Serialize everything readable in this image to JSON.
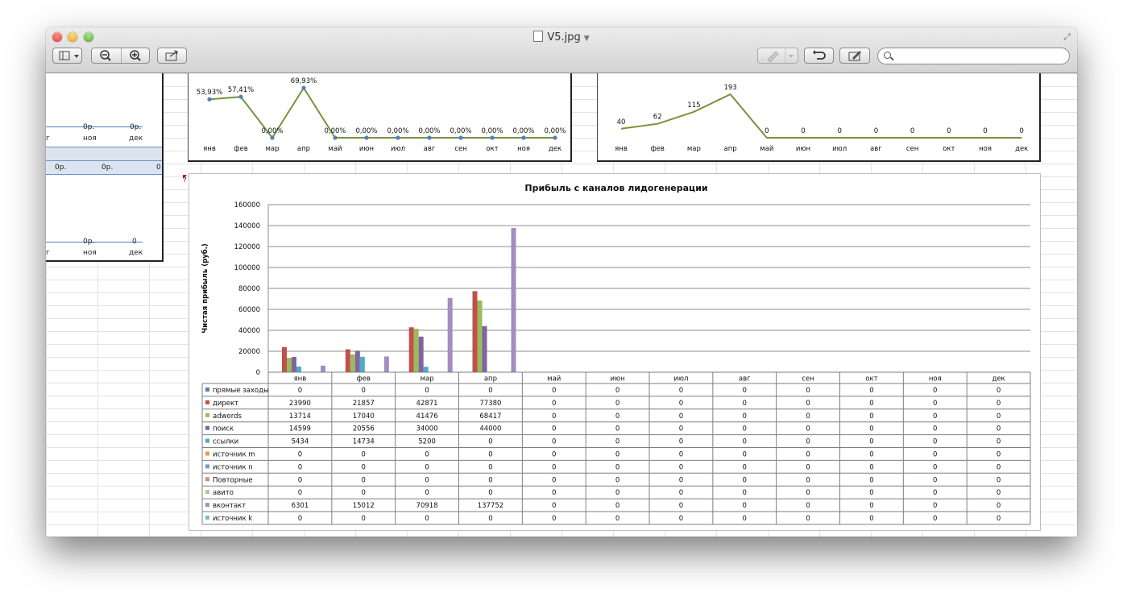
{
  "window": {
    "title": "V5.jpg"
  },
  "toolbar": {
    "sidebar_icon": "sidebar-icon",
    "zoom_out_icon": "zoom-out-icon",
    "zoom_in_icon": "zoom-in-icon",
    "share_icon": "share-icon",
    "annotate_icon": "highlighter-icon",
    "rotate_icon": "rotate-icon",
    "edit_icon": "edit-icon",
    "search_placeholder": ""
  },
  "left_panel": {
    "top_row": {
      "values": [
        "0р.",
        "0р."
      ],
      "months": [
        "ноя",
        "дек"
      ]
    },
    "mid_row": {
      "values": [
        "0р.",
        "0р.",
        "0"
      ]
    },
    "bottom_row": {
      "values": [
        "0р.",
        "0"
      ],
      "months": [
        "ноя",
        "дек"
      ]
    }
  },
  "chart_data": [
    {
      "type": "line",
      "categories": [
        "янв",
        "фев",
        "мар",
        "апр",
        "май",
        "июн",
        "июл",
        "авг",
        "сен",
        "окт",
        "ноя",
        "дек"
      ],
      "values": [
        53.93,
        57.41,
        0,
        69.93,
        0,
        0,
        0,
        0,
        0,
        0,
        0,
        0
      ],
      "labels": [
        "53,93%",
        "57,41%",
        "0,00%",
        "69,93%",
        "0,00%",
        "0,00%",
        "0,00%",
        "0,00%",
        "0,00%",
        "0,00%",
        "0,00%",
        "0,00%"
      ],
      "color": "#77933c",
      "marker_color": "#4f81bd"
    },
    {
      "type": "line",
      "categories": [
        "янв",
        "фев",
        "мар",
        "апр",
        "май",
        "июн",
        "июл",
        "авг",
        "сен",
        "окт",
        "ноя",
        "дек"
      ],
      "values": [
        40,
        62,
        115,
        193,
        0,
        0,
        0,
        0,
        0,
        0,
        0,
        0
      ],
      "labels": [
        "40",
        "62",
        "115",
        "193",
        "0",
        "0",
        "0",
        "0",
        "0",
        "0",
        "0",
        "0"
      ],
      "color": "#77933c"
    },
    {
      "type": "bar",
      "title": "Прибыль с каналов лидогенерации",
      "ylabel": "Чистая прибыль (руб.)",
      "ylim": [
        0,
        160000
      ],
      "yticks": [
        "0",
        "20000",
        "40000",
        "60000",
        "80000",
        "100000",
        "120000",
        "140000",
        "160000"
      ],
      "categories": [
        "янв",
        "фев",
        "мар",
        "апр",
        "май",
        "июн",
        "июл",
        "авг",
        "сен",
        "окт",
        "ноя",
        "дек"
      ],
      "grid": true,
      "series": [
        {
          "name": "прямые заходы",
          "color": "#4f81bd",
          "values": [
            0,
            0,
            0,
            0,
            0,
            0,
            0,
            0,
            0,
            0,
            0,
            0
          ]
        },
        {
          "name": "директ",
          "color": "#c0504d",
          "values": [
            23990,
            21857,
            42871,
            77380,
            0,
            0,
            0,
            0,
            0,
            0,
            0,
            0
          ]
        },
        {
          "name": "adwords",
          "color": "#9bbb59",
          "values": [
            13714,
            17040,
            41476,
            68417,
            0,
            0,
            0,
            0,
            0,
            0,
            0,
            0
          ]
        },
        {
          "name": "поиск",
          "color": "#8064a2",
          "values": [
            14599,
            20556,
            34000,
            44000,
            0,
            0,
            0,
            0,
            0,
            0,
            0,
            0
          ]
        },
        {
          "name": "ссылки",
          "color": "#4bacc6",
          "values": [
            5434,
            14734,
            5200,
            0,
            0,
            0,
            0,
            0,
            0,
            0,
            0,
            0
          ]
        },
        {
          "name": "источник m",
          "color": "#f79646",
          "values": [
            0,
            0,
            0,
            0,
            0,
            0,
            0,
            0,
            0,
            0,
            0,
            0
          ]
        },
        {
          "name": "источник n",
          "color": "#7f95c1",
          "values": [
            0,
            0,
            0,
            0,
            0,
            0,
            0,
            0,
            0,
            0,
            0,
            0
          ]
        },
        {
          "name": "Повторные",
          "color": "#d08a88",
          "values": [
            0,
            0,
            0,
            0,
            0,
            0,
            0,
            0,
            0,
            0,
            0,
            0
          ]
        },
        {
          "name": "авито",
          "color": "#b2c98b",
          "values": [
            0,
            0,
            0,
            0,
            0,
            0,
            0,
            0,
            0,
            0,
            0,
            0
          ]
        },
        {
          "name": "вконтакт",
          "color": "#a48cc0",
          "values": [
            6301,
            15012,
            70918,
            137752,
            0,
            0,
            0,
            0,
            0,
            0,
            0,
            0
          ]
        },
        {
          "name": "источник k",
          "color": "#78c0d3",
          "values": [
            0,
            0,
            0,
            0,
            0,
            0,
            0,
            0,
            0,
            0,
            0,
            0
          ]
        }
      ]
    }
  ]
}
